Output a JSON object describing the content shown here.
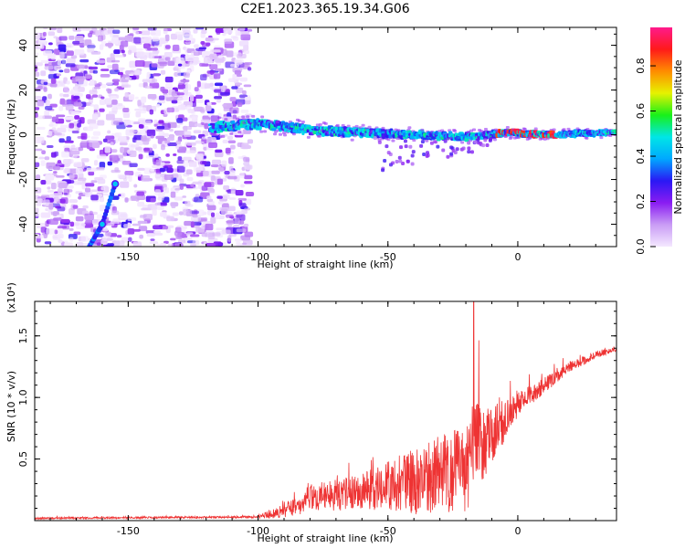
{
  "title": "C2E1.2023.365.19.34.G06",
  "chart_data": [
    {
      "type": "heatmap",
      "xlabel": "Height of straight line (km)",
      "ylabel": "Frequency (Hz)",
      "xlim": [
        -186,
        38
      ],
      "ylim": [
        -50,
        48
      ],
      "xticks": [
        -150,
        -100,
        -50,
        0
      ],
      "yticks": [
        -40,
        -20,
        0,
        20,
        40
      ],
      "colorbar": {
        "label": "Normalized spectral amplitude",
        "range": [
          0,
          0.97
        ],
        "ticks": [
          0.0,
          0.2,
          0.4,
          0.6,
          0.8
        ],
        "colormap": [
          "#f4e8ff",
          "#c99cf5",
          "#8a1cf2",
          "#2a18f4",
          "#00a8ff",
          "#00e6e6",
          "#19f019",
          "#e6f200",
          "#ff8c00",
          "#ff1a1a",
          "#ff1a8c"
        ]
      },
      "features": {
        "noise_region_x": [
          -186,
          -103
        ],
        "signal_track": [
          [
            -118,
            3
          ],
          [
            -100,
            5
          ],
          [
            -80,
            2
          ],
          [
            -60,
            1
          ],
          [
            -40,
            0
          ],
          [
            -20,
            -1
          ],
          [
            -5,
            1
          ],
          [
            10,
            0
          ],
          [
            38,
            1
          ]
        ],
        "trail_points": [
          [
            -165,
            -50
          ],
          [
            -160,
            -40
          ],
          [
            -155,
            -22
          ]
        ]
      }
    },
    {
      "type": "line",
      "xlabel": "Height of straight line (km)",
      "ylabel": "SNR (10 * v/v)",
      "y_multiplier": "(x10⁴)",
      "xlim": [
        -186,
        38
      ],
      "ylim": [
        0,
        1.78
      ],
      "xticks": [
        -150,
        -100,
        -50,
        0
      ],
      "yticks": [
        0.5,
        1.0,
        1.5
      ],
      "ytick_labels": [
        "0.5",
        "1.0",
        "1.5"
      ],
      "color": "#ee3333",
      "series_profile": {
        "x": [
          -186,
          -100,
          -95,
          -85,
          -80,
          -70,
          -60,
          -50,
          -40,
          -30,
          -20,
          -17,
          -10,
          0,
          10,
          20,
          30,
          38
        ],
        "baseline": [
          0.02,
          0.03,
          0.06,
          0.12,
          0.2,
          0.22,
          0.25,
          0.3,
          0.35,
          0.4,
          0.45,
          0.6,
          0.72,
          0.95,
          1.1,
          1.25,
          1.35,
          1.4
        ],
        "spread": [
          0.01,
          0.01,
          0.05,
          0.1,
          0.14,
          0.16,
          0.18,
          0.25,
          0.35,
          0.4,
          0.45,
          0.5,
          0.3,
          0.12,
          0.08,
          0.05,
          0.04,
          0.03
        ],
        "peak": {
          "x": -17,
          "y": 1.78
        }
      }
    }
  ]
}
